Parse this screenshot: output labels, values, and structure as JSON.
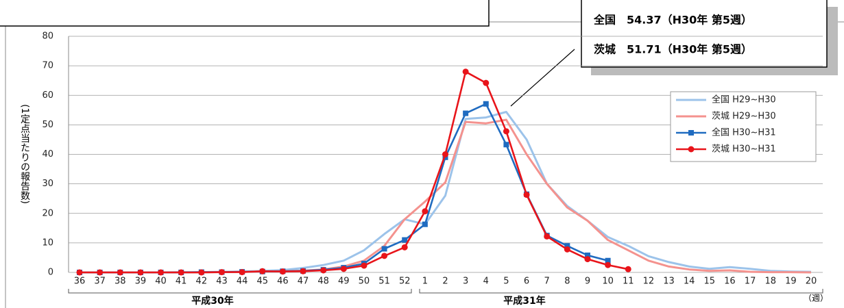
{
  "chart_data": {
    "type": "line",
    "ylabel": "(1定点当たりの報告数)",
    "categories": [
      "36",
      "37",
      "38",
      "39",
      "40",
      "41",
      "42",
      "43",
      "44",
      "45",
      "46",
      "47",
      "48",
      "49",
      "50",
      "51",
      "52",
      "1",
      "2",
      "3",
      "4",
      "5",
      "6",
      "7",
      "8",
      "9",
      "10",
      "11",
      "12",
      "13",
      "14",
      "15",
      "16",
      "17",
      "18",
      "19",
      "20"
    ],
    "ylim": [
      0,
      80
    ],
    "yticks": [
      0,
      10,
      20,
      30,
      40,
      50,
      60,
      70,
      80
    ],
    "grid": true,
    "year_labels": [
      "平成30年",
      "平成31年"
    ],
    "x_unit": "（週）",
    "annotations": [
      "全国　54.37（H30年 第5週）",
      "茨城　51.71（H30年 第5週）"
    ],
    "series": [
      {
        "name": "全国 H29~H30",
        "color": "#9cc3ea",
        "marker": "none",
        "values": [
          0,
          0,
          0,
          0,
          0,
          0.1,
          0.1,
          0.2,
          0.3,
          0.5,
          0.8,
          1.5,
          2.5,
          4,
          7.5,
          13,
          18,
          16.3,
          26,
          52,
          52.5,
          54.37,
          45,
          30,
          22.5,
          17.5,
          12,
          9,
          5.5,
          3.5,
          2,
          1.2,
          1.8,
          1.2,
          0.5,
          0.3,
          0.2
        ]
      },
      {
        "name": "茨城 H29~H30",
        "color": "#f4928e",
        "marker": "none",
        "values": [
          0,
          0,
          0,
          0,
          0,
          0,
          0,
          0.1,
          0.2,
          0.3,
          0.4,
          0.6,
          1,
          2,
          4,
          9,
          18,
          24,
          30.5,
          51,
          50.5,
          51.71,
          40,
          30,
          22,
          17.5,
          11,
          7.5,
          4,
          2,
          1,
          0.5,
          0.7,
          0.2,
          0.1,
          0.1,
          0
        ]
      },
      {
        "name": "全国 H30~H31",
        "color": "#1f6bc0",
        "marker": "square",
        "values": [
          0,
          0,
          0,
          0,
          0,
          0,
          0.1,
          0.1,
          0.2,
          0.3,
          0.4,
          0.5,
          0.9,
          1.6,
          3,
          8,
          11,
          16.3,
          39,
          53.9,
          57.1,
          43.3,
          26.5,
          12.5,
          9,
          5.8,
          4,
          null,
          null,
          null,
          null,
          null,
          null,
          null,
          null,
          null,
          null
        ]
      },
      {
        "name": "茨城 H30~H31",
        "color": "#e8141a",
        "marker": "circle",
        "values": [
          0,
          0,
          0,
          0,
          0,
          0,
          0,
          0.1,
          0.1,
          0.4,
          0.3,
          0.4,
          0.7,
          1.2,
          2.3,
          5.6,
          8.5,
          20.7,
          40,
          68,
          64.2,
          47.8,
          26.3,
          12.2,
          7.8,
          4.5,
          2.5,
          1.1,
          null,
          null,
          null,
          null,
          null,
          null,
          null,
          null,
          null
        ]
      }
    ]
  }
}
